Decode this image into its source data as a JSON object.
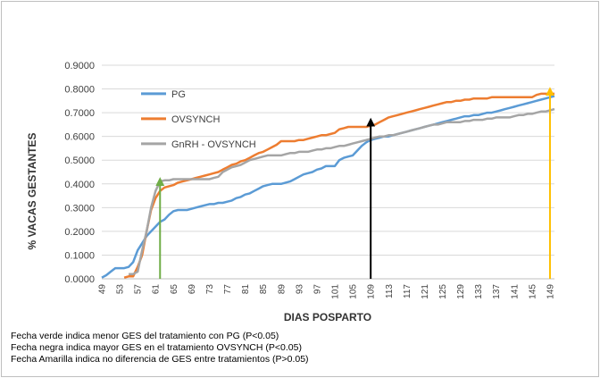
{
  "chart_data": {
    "type": "line",
    "title": "",
    "xlabel": "DIAS POSPARTO",
    "ylabel": "% VACAS GESTANTES",
    "ylim": [
      0,
      0.9
    ],
    "yticks": [
      "0.0000",
      "0.1000",
      "0.2000",
      "0.3000",
      "0.4000",
      "0.5000",
      "0.6000",
      "0.7000",
      "0.8000",
      "0.9000"
    ],
    "xlim": [
      49,
      150
    ],
    "xticks": [
      49,
      53,
      57,
      61,
      65,
      69,
      73,
      77,
      81,
      85,
      89,
      93,
      97,
      101,
      105,
      109,
      113,
      117,
      121,
      125,
      129,
      133,
      137,
      141,
      145,
      149
    ],
    "grid": "horizontal",
    "legend_position": "left-top inside plot",
    "series": [
      {
        "name": "PG",
        "color": "#5B9BD5",
        "points": [
          [
            49,
            0.005
          ],
          [
            50,
            0.015
          ],
          [
            51,
            0.03
          ],
          [
            52,
            0.045
          ],
          [
            53,
            0.045
          ],
          [
            54,
            0.045
          ],
          [
            55,
            0.05
          ],
          [
            56,
            0.07
          ],
          [
            57,
            0.12
          ],
          [
            58,
            0.15
          ],
          [
            59,
            0.18
          ],
          [
            60,
            0.2
          ],
          [
            61,
            0.22
          ],
          [
            62,
            0.24
          ],
          [
            63,
            0.25
          ],
          [
            64,
            0.27
          ],
          [
            65,
            0.285
          ],
          [
            66,
            0.29
          ],
          [
            67,
            0.29
          ],
          [
            68,
            0.29
          ],
          [
            69,
            0.295
          ],
          [
            70,
            0.3
          ],
          [
            71,
            0.305
          ],
          [
            72,
            0.31
          ],
          [
            73,
            0.315
          ],
          [
            74,
            0.315
          ],
          [
            75,
            0.32
          ],
          [
            76,
            0.32
          ],
          [
            77,
            0.325
          ],
          [
            78,
            0.33
          ],
          [
            79,
            0.34
          ],
          [
            80,
            0.345
          ],
          [
            81,
            0.355
          ],
          [
            82,
            0.36
          ],
          [
            83,
            0.37
          ],
          [
            84,
            0.38
          ],
          [
            85,
            0.39
          ],
          [
            86,
            0.395
          ],
          [
            87,
            0.4
          ],
          [
            88,
            0.4
          ],
          [
            89,
            0.4
          ],
          [
            90,
            0.405
          ],
          [
            91,
            0.41
          ],
          [
            92,
            0.42
          ],
          [
            93,
            0.43
          ],
          [
            94,
            0.44
          ],
          [
            95,
            0.445
          ],
          [
            96,
            0.45
          ],
          [
            97,
            0.46
          ],
          [
            98,
            0.465
          ],
          [
            99,
            0.475
          ],
          [
            100,
            0.475
          ],
          [
            101,
            0.475
          ],
          [
            102,
            0.5
          ],
          [
            103,
            0.51
          ],
          [
            104,
            0.515
          ],
          [
            105,
            0.52
          ],
          [
            106,
            0.54
          ],
          [
            107,
            0.56
          ],
          [
            108,
            0.575
          ],
          [
            109,
            0.585
          ],
          [
            110,
            0.59
          ],
          [
            111,
            0.595
          ],
          [
            112,
            0.6
          ],
          [
            113,
            0.6
          ],
          [
            114,
            0.605
          ],
          [
            115,
            0.61
          ],
          [
            116,
            0.615
          ],
          [
            117,
            0.62
          ],
          [
            118,
            0.625
          ],
          [
            119,
            0.63
          ],
          [
            120,
            0.635
          ],
          [
            121,
            0.64
          ],
          [
            122,
            0.645
          ],
          [
            123,
            0.65
          ],
          [
            124,
            0.655
          ],
          [
            125,
            0.66
          ],
          [
            126,
            0.665
          ],
          [
            127,
            0.67
          ],
          [
            128,
            0.675
          ],
          [
            129,
            0.68
          ],
          [
            130,
            0.685
          ],
          [
            131,
            0.685
          ],
          [
            132,
            0.69
          ],
          [
            133,
            0.69
          ],
          [
            134,
            0.695
          ],
          [
            135,
            0.7
          ],
          [
            136,
            0.7
          ],
          [
            137,
            0.705
          ],
          [
            138,
            0.71
          ],
          [
            139,
            0.715
          ],
          [
            140,
            0.72
          ],
          [
            141,
            0.725
          ],
          [
            142,
            0.73
          ],
          [
            143,
            0.735
          ],
          [
            144,
            0.74
          ],
          [
            145,
            0.745
          ],
          [
            146,
            0.75
          ],
          [
            147,
            0.755
          ],
          [
            148,
            0.76
          ],
          [
            149,
            0.765
          ],
          [
            150,
            0.77
          ]
        ]
      },
      {
        "name": "OVSYNCH",
        "color": "#ED7D31",
        "points": [
          [
            54,
            0.005
          ],
          [
            55,
            0.01
          ],
          [
            56,
            0.01
          ],
          [
            57,
            0.05
          ],
          [
            58,
            0.1
          ],
          [
            59,
            0.2
          ],
          [
            60,
            0.29
          ],
          [
            61,
            0.34
          ],
          [
            62,
            0.37
          ],
          [
            63,
            0.385
          ],
          [
            64,
            0.39
          ],
          [
            65,
            0.395
          ],
          [
            66,
            0.405
          ],
          [
            67,
            0.41
          ],
          [
            68,
            0.415
          ],
          [
            69,
            0.42
          ],
          [
            70,
            0.425
          ],
          [
            71,
            0.43
          ],
          [
            72,
            0.435
          ],
          [
            73,
            0.44
          ],
          [
            74,
            0.445
          ],
          [
            75,
            0.45
          ],
          [
            76,
            0.46
          ],
          [
            77,
            0.47
          ],
          [
            78,
            0.48
          ],
          [
            79,
            0.485
          ],
          [
            80,
            0.495
          ],
          [
            81,
            0.5
          ],
          [
            82,
            0.51
          ],
          [
            83,
            0.52
          ],
          [
            84,
            0.53
          ],
          [
            85,
            0.535
          ],
          [
            86,
            0.545
          ],
          [
            87,
            0.555
          ],
          [
            88,
            0.565
          ],
          [
            89,
            0.58
          ],
          [
            90,
            0.58
          ],
          [
            91,
            0.58
          ],
          [
            92,
            0.58
          ],
          [
            93,
            0.585
          ],
          [
            94,
            0.585
          ],
          [
            95,
            0.59
          ],
          [
            96,
            0.595
          ],
          [
            97,
            0.6
          ],
          [
            98,
            0.605
          ],
          [
            99,
            0.605
          ],
          [
            100,
            0.61
          ],
          [
            101,
            0.615
          ],
          [
            102,
            0.63
          ],
          [
            103,
            0.635
          ],
          [
            104,
            0.64
          ],
          [
            105,
            0.64
          ],
          [
            106,
            0.64
          ],
          [
            107,
            0.64
          ],
          [
            108,
            0.64
          ],
          [
            109,
            0.645
          ],
          [
            110,
            0.65
          ],
          [
            111,
            0.66
          ],
          [
            112,
            0.67
          ],
          [
            113,
            0.68
          ],
          [
            114,
            0.685
          ],
          [
            115,
            0.69
          ],
          [
            116,
            0.695
          ],
          [
            117,
            0.7
          ],
          [
            118,
            0.705
          ],
          [
            119,
            0.71
          ],
          [
            120,
            0.715
          ],
          [
            121,
            0.72
          ],
          [
            122,
            0.725
          ],
          [
            123,
            0.73
          ],
          [
            124,
            0.735
          ],
          [
            125,
            0.74
          ],
          [
            126,
            0.745
          ],
          [
            127,
            0.745
          ],
          [
            128,
            0.75
          ],
          [
            129,
            0.75
          ],
          [
            130,
            0.755
          ],
          [
            131,
            0.755
          ],
          [
            132,
            0.76
          ],
          [
            133,
            0.76
          ],
          [
            134,
            0.76
          ],
          [
            135,
            0.76
          ],
          [
            136,
            0.765
          ],
          [
            137,
            0.765
          ],
          [
            138,
            0.765
          ],
          [
            139,
            0.765
          ],
          [
            140,
            0.765
          ],
          [
            141,
            0.765
          ],
          [
            142,
            0.765
          ],
          [
            143,
            0.765
          ],
          [
            144,
            0.765
          ],
          [
            145,
            0.765
          ],
          [
            146,
            0.775
          ],
          [
            147,
            0.78
          ],
          [
            148,
            0.78
          ],
          [
            149,
            0.78
          ],
          [
            150,
            0.78
          ]
        ]
      },
      {
        "name": "GnRH - OVSYNCH",
        "color": "#A5A5A5",
        "points": [
          [
            55,
            0.02
          ],
          [
            56,
            0.02
          ],
          [
            57,
            0.03
          ],
          [
            58,
            0.12
          ],
          [
            59,
            0.2
          ],
          [
            60,
            0.3
          ],
          [
            61,
            0.37
          ],
          [
            62,
            0.41
          ],
          [
            63,
            0.415
          ],
          [
            64,
            0.415
          ],
          [
            65,
            0.42
          ],
          [
            66,
            0.42
          ],
          [
            67,
            0.42
          ],
          [
            68,
            0.42
          ],
          [
            69,
            0.42
          ],
          [
            70,
            0.42
          ],
          [
            71,
            0.42
          ],
          [
            72,
            0.42
          ],
          [
            73,
            0.42
          ],
          [
            74,
            0.425
          ],
          [
            75,
            0.43
          ],
          [
            76,
            0.45
          ],
          [
            77,
            0.46
          ],
          [
            78,
            0.47
          ],
          [
            79,
            0.475
          ],
          [
            80,
            0.48
          ],
          [
            81,
            0.49
          ],
          [
            82,
            0.5
          ],
          [
            83,
            0.505
          ],
          [
            84,
            0.51
          ],
          [
            85,
            0.515
          ],
          [
            86,
            0.52
          ],
          [
            87,
            0.52
          ],
          [
            88,
            0.52
          ],
          [
            89,
            0.52
          ],
          [
            90,
            0.525
          ],
          [
            91,
            0.53
          ],
          [
            92,
            0.53
          ],
          [
            93,
            0.535
          ],
          [
            94,
            0.535
          ],
          [
            95,
            0.535
          ],
          [
            96,
            0.54
          ],
          [
            97,
            0.545
          ],
          [
            98,
            0.545
          ],
          [
            99,
            0.55
          ],
          [
            100,
            0.55
          ],
          [
            101,
            0.555
          ],
          [
            102,
            0.56
          ],
          [
            103,
            0.56
          ],
          [
            104,
            0.565
          ],
          [
            105,
            0.57
          ],
          [
            106,
            0.575
          ],
          [
            107,
            0.58
          ],
          [
            108,
            0.585
          ],
          [
            109,
            0.59
          ],
          [
            110,
            0.595
          ],
          [
            111,
            0.6
          ],
          [
            112,
            0.6
          ],
          [
            113,
            0.605
          ],
          [
            114,
            0.605
          ],
          [
            115,
            0.61
          ],
          [
            116,
            0.615
          ],
          [
            117,
            0.62
          ],
          [
            118,
            0.625
          ],
          [
            119,
            0.63
          ],
          [
            120,
            0.635
          ],
          [
            121,
            0.64
          ],
          [
            122,
            0.645
          ],
          [
            123,
            0.65
          ],
          [
            124,
            0.65
          ],
          [
            125,
            0.655
          ],
          [
            126,
            0.66
          ],
          [
            127,
            0.66
          ],
          [
            128,
            0.66
          ],
          [
            129,
            0.66
          ],
          [
            130,
            0.665
          ],
          [
            131,
            0.665
          ],
          [
            132,
            0.67
          ],
          [
            133,
            0.67
          ],
          [
            134,
            0.67
          ],
          [
            135,
            0.675
          ],
          [
            136,
            0.675
          ],
          [
            137,
            0.68
          ],
          [
            138,
            0.68
          ],
          [
            139,
            0.68
          ],
          [
            140,
            0.68
          ],
          [
            141,
            0.685
          ],
          [
            142,
            0.69
          ],
          [
            143,
            0.69
          ],
          [
            144,
            0.695
          ],
          [
            145,
            0.695
          ],
          [
            146,
            0.7
          ],
          [
            147,
            0.705
          ],
          [
            148,
            0.705
          ],
          [
            149,
            0.71
          ],
          [
            150,
            0.715
          ]
        ]
      }
    ],
    "markers": [
      {
        "color": "#70AD47",
        "x": 62,
        "y": 0.41,
        "meaning": "green"
      },
      {
        "color": "#000000",
        "x": 109,
        "y": 0.66,
        "meaning": "black"
      },
      {
        "color": "#FFC000",
        "x": 149,
        "y": 0.79,
        "meaning": "yellow"
      }
    ]
  },
  "notes": [
    "Fecha verde indica menor GES del tratamiento con PG (P<0.05)",
    "Fecha negra indica mayor GES en el tratamiento OVSYNCH (P<0.05)",
    "Fecha Amarilla indica no diferencia de GES entre tratamientos (P>0.05)"
  ]
}
